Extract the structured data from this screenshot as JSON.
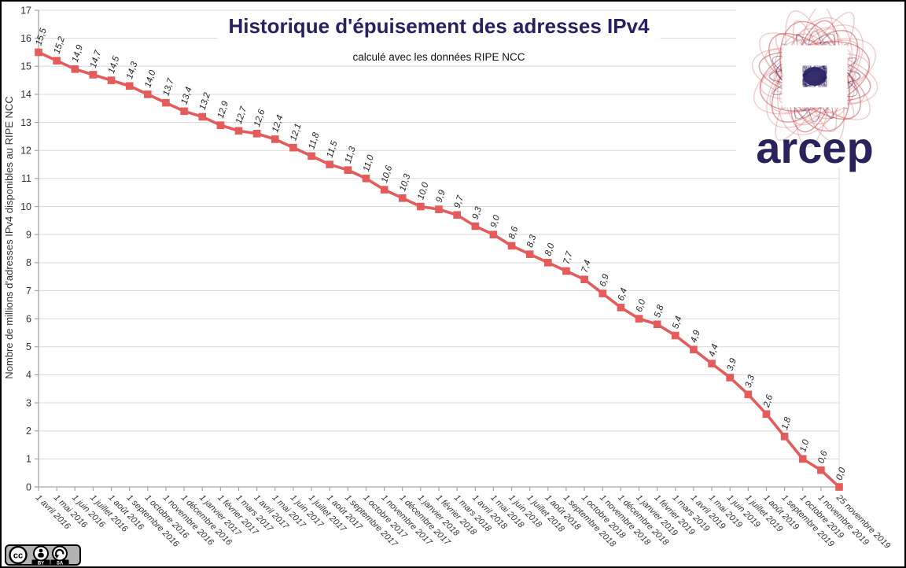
{
  "header": {
    "title": "Historique d'épuisement des adresses IPv4",
    "subtitle": "calculé avec les données RIPE NCC",
    "title_color": "#262262"
  },
  "branding": {
    "logo_text": "arcep",
    "logo_text_color": "#29235c",
    "scribble_pink": "#dd7b7b",
    "scribble_red": "#c94f4f",
    "scribble_navy": "#2a2464"
  },
  "license": {
    "cc_text": "cc",
    "by_text": "BY",
    "sa_text": "SA"
  },
  "colors": {
    "grid": "#d9d9d9",
    "axis": "#a6a6a6",
    "tick_label": "#333333",
    "data_label": "#222222",
    "accent": "#e45b5b"
  },
  "chart_data": {
    "type": "line",
    "title": "Historique d'épuisement des adresses IPv4",
    "subtitle": "calculé avec les données RIPE NCC",
    "xlabel": "",
    "ylabel": "Nombre de millions d'adresses IPv4 disponibles au RIPE NCC",
    "ylim": [
      0,
      17
    ],
    "ytick_step": 1,
    "grid": true,
    "legend": "none",
    "series_color": "#e45b5b",
    "marker": "square",
    "decimal_separator": ",",
    "categories": [
      "1 avril 2016",
      "1 mai 2016",
      "1 juin 2016",
      "1 juillet 2016",
      "1 août 2016",
      "1 septembre 2016",
      "1 octobre 2016",
      "1 novembre 2016",
      "1 décembre 2016",
      "1 janvier 2017",
      "1 février 2017",
      "1 mars 2017",
      "1 avril 2017",
      "1 mai 2017",
      "1 juin 2017",
      "1 juillet 2017",
      "1 août 2017",
      "1 septembre 2017",
      "1 octobre 2017",
      "1 novembre 2017",
      "1 décembre 2017",
      "1 janvier 2018",
      "1 février 2018",
      "1 mars 2018",
      "1 avril 2018",
      "1 mai 2018",
      "1 juin 2018",
      "1 juillet 2018",
      "1 août 2018",
      "1 septembre 2018",
      "1 octobre 2018",
      "1 novembre 2018",
      "1 décembre 2018",
      "1 janvier 2019",
      "1 février 2019",
      "1 mars 2019",
      "1 avril 2019",
      "1 mai 2019",
      "1 juin 2019",
      "1 juillet 2019",
      "1 août 2019",
      "1 septembre 2019",
      "1 octobre 2019",
      "1 novembre 2019",
      "25 novembre 2019"
    ],
    "values": [
      15.5,
      15.2,
      14.9,
      14.7,
      14.5,
      14.3,
      14.0,
      13.7,
      13.4,
      13.2,
      12.9,
      12.7,
      12.6,
      12.4,
      12.1,
      11.8,
      11.5,
      11.3,
      11.0,
      10.6,
      10.3,
      10.0,
      9.9,
      9.7,
      9.3,
      9.0,
      8.6,
      8.3,
      8.0,
      7.7,
      7.4,
      6.9,
      6.4,
      6.0,
      5.8,
      5.4,
      4.9,
      4.4,
      3.9,
      3.3,
      2.6,
      1.8,
      1.0,
      0.6,
      0.0
    ]
  }
}
